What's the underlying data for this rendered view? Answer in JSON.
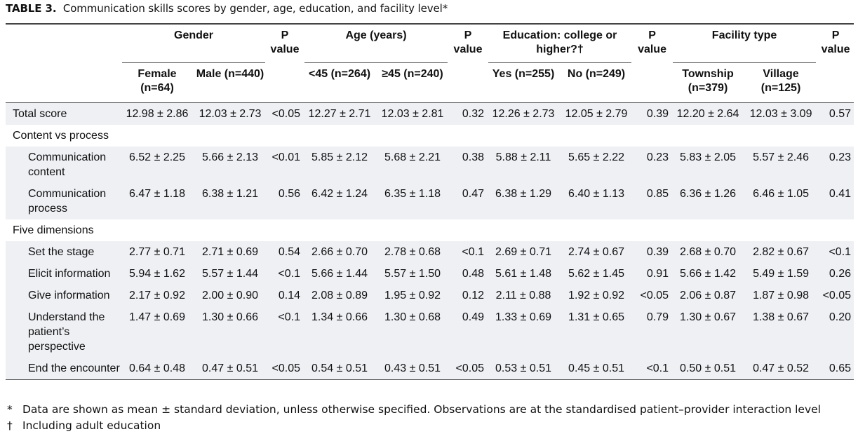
{
  "caption": {
    "label": "TABLE 3.",
    "title": "Communication skills scores by gender, age, education, and facility level",
    "mark": "*"
  },
  "header": {
    "groups": {
      "gender": "Gender",
      "p_gender": "P value",
      "age": "Age (years)",
      "p_age": "P value",
      "education": "Education: college or higher?†",
      "p_education": "P value",
      "facility": "Facility type",
      "p_facility": "P value"
    },
    "subs": {
      "female": "Female (n=64)",
      "male": "Male (n=440)",
      "age_lt45": "<45 (n=264)",
      "age_ge45": "≥45 (n=240)",
      "edu_yes": "Yes (n=255)",
      "edu_no": "No (n=249)",
      "township": "Township (n=379)",
      "village": "Village (n=125)"
    }
  },
  "rows": [
    {
      "label": "Total score",
      "cells": [
        "12.98 ± 2.86",
        "12.03 ± 2.73",
        "<0.05",
        "12.27 ± 2.71",
        "12.03 ± 2.81",
        "0.32",
        "12.26 ± 2.73",
        "12.05 ± 2.79",
        "0.39",
        "12.20 ± 2.64",
        "12.03 ± 3.09",
        "0.57"
      ]
    },
    {
      "label": "Content vs process"
    },
    {
      "label": "Communication content",
      "cells": [
        "6.52 ± 2.25",
        "5.66 ± 2.13",
        "<0.01",
        "5.85 ± 2.12",
        "5.68 ± 2.21",
        "0.38",
        "5.88 ± 2.11",
        "5.65 ± 2.22",
        "0.23",
        "5.83 ± 2.05",
        "5.57 ± 2.46",
        "0.23"
      ]
    },
    {
      "label": "Communication process",
      "cells": [
        "6.47 ± 1.18",
        "6.38 ± 1.21",
        "0.56",
        "6.42 ± 1.24",
        "6.35 ± 1.18",
        "0.47",
        "6.38 ± 1.29",
        "6.40 ± 1.13",
        "0.85",
        "6.36 ± 1.26",
        "6.46 ± 1.05",
        "0.41"
      ]
    },
    {
      "label": "Five dimensions"
    },
    {
      "label": "Set the stage",
      "cells": [
        "2.77 ± 0.71",
        "2.71 ± 0.69",
        "0.54",
        "2.66 ± 0.70",
        "2.78 ± 0.68",
        "<0.1",
        "2.69 ± 0.71",
        "2.74 ± 0.67",
        "0.39",
        "2.68 ± 0.70",
        "2.82 ± 0.67",
        "<0.1"
      ]
    },
    {
      "label": "Elicit information",
      "cells": [
        "5.94 ± 1.62",
        "5.57 ± 1.44",
        "<0.1",
        "5.66 ± 1.44",
        "5.57 ± 1.50",
        "0.48",
        "5.61 ± 1.48",
        "5.62 ± 1.45",
        "0.91",
        "5.66 ± 1.42",
        "5.49 ± 1.59",
        "0.26"
      ]
    },
    {
      "label": "Give information",
      "cells": [
        "2.17 ± 0.92",
        "2.00 ± 0.90",
        "0.14",
        "2.08 ± 0.89",
        "1.95 ± 0.92",
        "0.12",
        "2.11 ± 0.88",
        "1.92 ± 0.92",
        "<0.05",
        "2.06 ± 0.87",
        "1.87 ± 0.98",
        "<0.05"
      ]
    },
    {
      "label": "Understand the patient’s perspective",
      "cells": [
        "1.47 ± 0.69",
        "1.30 ± 0.66",
        "<0.1",
        "1.34 ± 0.66",
        "1.30 ± 0.68",
        "0.49",
        "1.33 ± 0.69",
        "1.31 ± 0.65",
        "0.79",
        "1.30 ± 0.67",
        "1.38 ± 0.67",
        "0.20"
      ]
    },
    {
      "label": "End the encounter",
      "cells": [
        "0.64 ± 0.48",
        "0.47 ± 0.51",
        "<0.05",
        "0.54 ± 0.51",
        "0.43 ± 0.51",
        "<0.05",
        "0.53 ± 0.51",
        "0.45 ± 0.51",
        "<0.1",
        "0.50 ± 0.51",
        "0.47 ± 0.52",
        "0.65"
      ]
    }
  ],
  "footnotes": [
    {
      "mark": "*",
      "text": "Data are shown as mean ± standard deviation, unless otherwise specified. Observations are at the standardised patient–provider interaction level"
    },
    {
      "mark": "†",
      "text": "Including adult education"
    }
  ]
}
